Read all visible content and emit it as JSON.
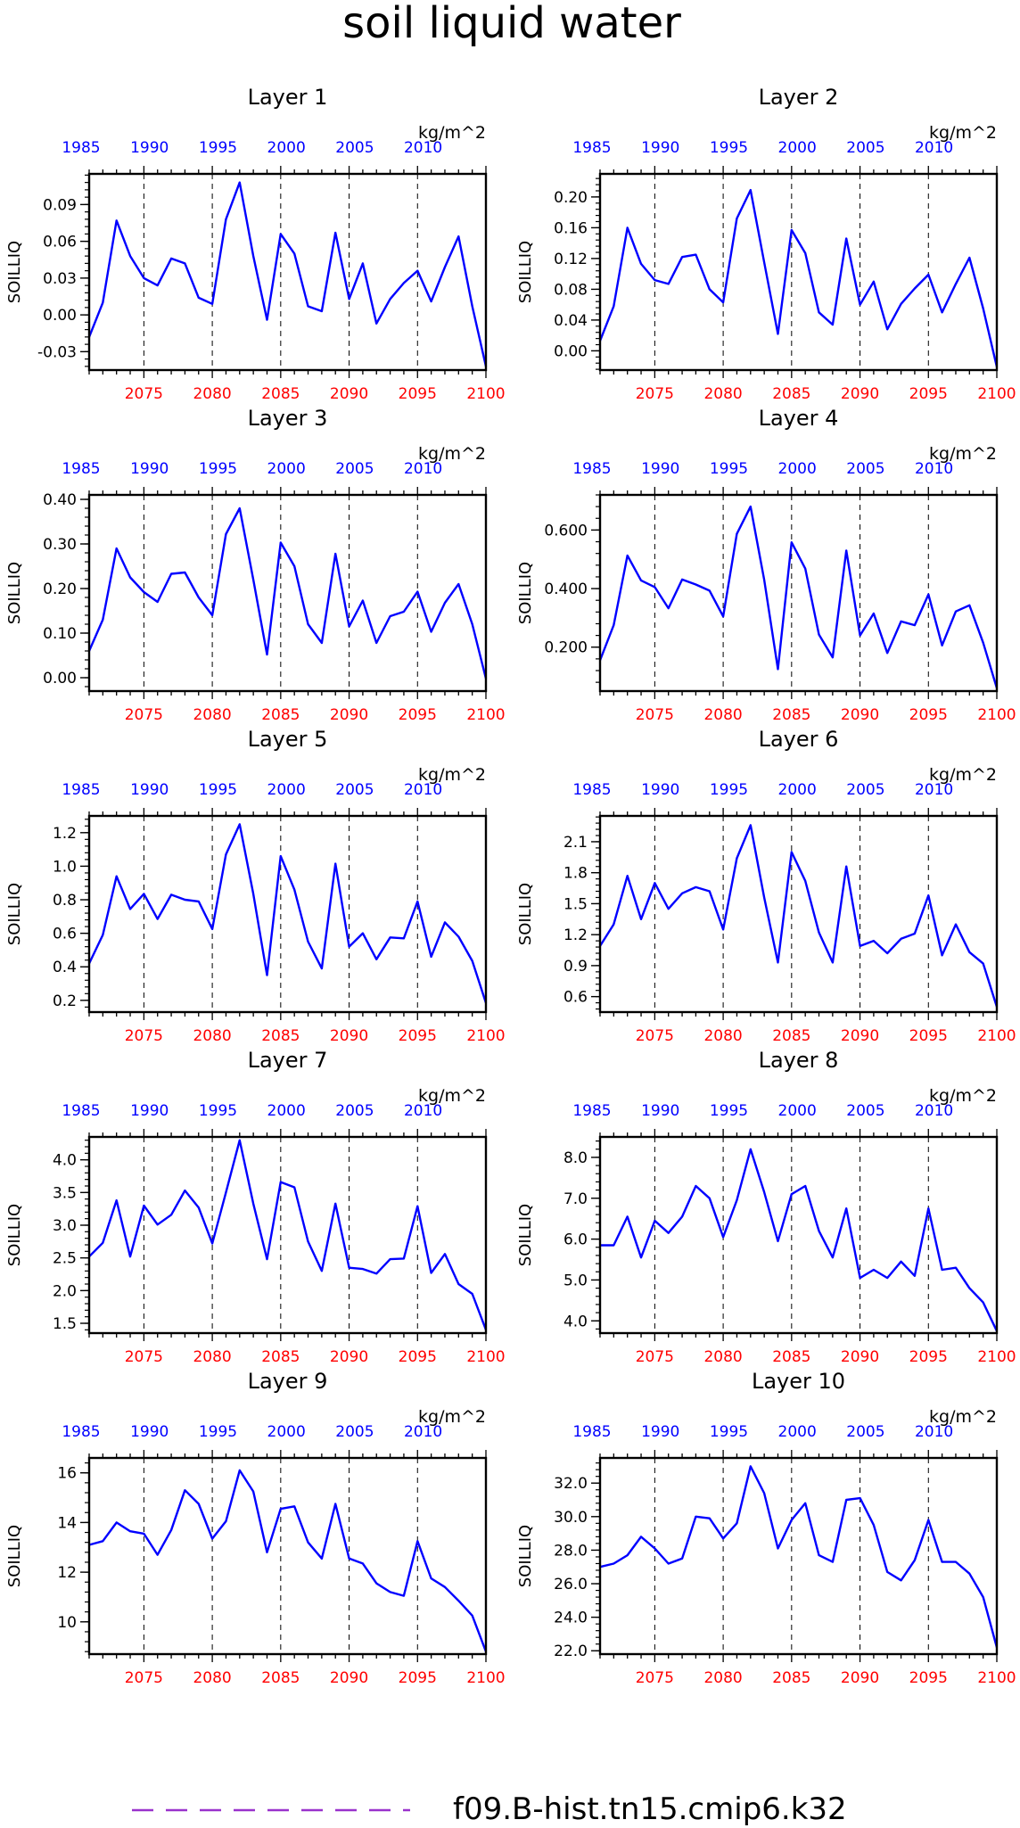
{
  "title": "soil liquid water",
  "legend": {
    "label": "f09.B-hist.tn15.cmip6.k32",
    "line_color": "#9932CC",
    "line_style": "dashed"
  },
  "colors": {
    "series": "#0000FF",
    "bottom_axis_ticks": "#FF0000",
    "top_axis_ticks": "#0000FF",
    "frame": "#000000"
  },
  "shared": {
    "ylabel": "SOILLIQ",
    "units": "kg/m^2",
    "bottom_xlim": [
      2071,
      2100
    ],
    "bottom_ticks": [
      "2075",
      "2080",
      "2085",
      "2090",
      "2095",
      "2100"
    ],
    "top_ticks": [
      "1985",
      "1990",
      "1995",
      "2000",
      "2005",
      "2010"
    ],
    "dashed_vlines_at": [
      2075,
      2080,
      2085,
      2090,
      2095
    ]
  },
  "chart_data": [
    {
      "type": "line",
      "title": "Layer 1",
      "ylabel": "SOILLIQ",
      "units": "kg/m^2",
      "ylim": [
        -0.045,
        0.115
      ],
      "yticks": [
        -0.03,
        0.0,
        0.03,
        0.06,
        0.09
      ],
      "ytick_labels": [
        "-0.03",
        "0.00",
        "0.03",
        "0.06",
        "0.09"
      ],
      "x": [
        2071,
        2072,
        2073,
        2074,
        2075,
        2076,
        2077,
        2078,
        2079,
        2080,
        2081,
        2082,
        2083,
        2084,
        2085,
        2086,
        2087,
        2088,
        2089,
        2090,
        2091,
        2092,
        2093,
        2094,
        2095,
        2096,
        2097,
        2098,
        2099,
        2100
      ],
      "values": [
        -0.018,
        0.01,
        0.077,
        0.048,
        0.03,
        0.024,
        0.046,
        0.042,
        0.014,
        0.009,
        0.078,
        0.108,
        0.048,
        -0.004,
        0.066,
        0.05,
        0.007,
        0.003,
        0.067,
        0.013,
        0.042,
        -0.007,
        0.013,
        0.026,
        0.036,
        0.011,
        0.039,
        0.064,
        0.007,
        -0.042
      ]
    },
    {
      "type": "line",
      "title": "Layer 2",
      "ylabel": "SOILLIQ",
      "units": "kg/m^2",
      "ylim": [
        -0.025,
        0.23
      ],
      "yticks": [
        0.0,
        0.04,
        0.08,
        0.12,
        0.16,
        0.2
      ],
      "ytick_labels": [
        "0.00",
        "0.04",
        "0.08",
        "0.12",
        "0.16",
        "0.20"
      ],
      "x": [
        2071,
        2072,
        2073,
        2074,
        2075,
        2076,
        2077,
        2078,
        2079,
        2080,
        2081,
        2082,
        2083,
        2084,
        2085,
        2086,
        2087,
        2088,
        2089,
        2090,
        2091,
        2092,
        2093,
        2094,
        2095,
        2096,
        2097,
        2098,
        2099,
        2100
      ],
      "values": [
        0.013,
        0.058,
        0.16,
        0.113,
        0.092,
        0.087,
        0.122,
        0.125,
        0.08,
        0.063,
        0.172,
        0.209,
        0.115,
        0.022,
        0.157,
        0.127,
        0.05,
        0.034,
        0.146,
        0.06,
        0.09,
        0.028,
        0.061,
        0.081,
        0.099,
        0.05,
        0.087,
        0.121,
        0.055,
        -0.021
      ]
    },
    {
      "type": "line",
      "title": "Layer 3",
      "ylabel": "SOILLIQ",
      "units": "kg/m^2",
      "ylim": [
        -0.03,
        0.41
      ],
      "yticks": [
        0.0,
        0.1,
        0.2,
        0.3,
        0.4
      ],
      "ytick_labels": [
        "0.00",
        "0.10",
        "0.20",
        "0.30",
        "0.40"
      ],
      "x": [
        2071,
        2072,
        2073,
        2074,
        2075,
        2076,
        2077,
        2078,
        2079,
        2080,
        2081,
        2082,
        2083,
        2084,
        2085,
        2086,
        2087,
        2088,
        2089,
        2090,
        2091,
        2092,
        2093,
        2094,
        2095,
        2096,
        2097,
        2098,
        2099,
        2100
      ],
      "values": [
        0.06,
        0.13,
        0.29,
        0.225,
        0.192,
        0.17,
        0.233,
        0.236,
        0.18,
        0.14,
        0.322,
        0.38,
        0.22,
        0.052,
        0.303,
        0.25,
        0.12,
        0.078,
        0.278,
        0.115,
        0.173,
        0.078,
        0.138,
        0.148,
        0.193,
        0.103,
        0.168,
        0.21,
        0.12,
        -0.002
      ]
    },
    {
      "type": "line",
      "title": "Layer 4",
      "ylabel": "SOILLIQ",
      "units": "kg/m^2",
      "ylim": [
        0.05,
        0.72
      ],
      "yticks": [
        0.2,
        0.4,
        0.6
      ],
      "ytick_labels": [
        "0.200",
        "0.400",
        "0.600"
      ],
      "x": [
        2071,
        2072,
        2073,
        2074,
        2075,
        2076,
        2077,
        2078,
        2079,
        2080,
        2081,
        2082,
        2083,
        2084,
        2085,
        2086,
        2087,
        2088,
        2089,
        2090,
        2091,
        2092,
        2093,
        2094,
        2095,
        2096,
        2097,
        2098,
        2099,
        2100
      ],
      "values": [
        0.155,
        0.275,
        0.513,
        0.428,
        0.405,
        0.333,
        0.431,
        0.414,
        0.393,
        0.305,
        0.587,
        0.68,
        0.43,
        0.125,
        0.558,
        0.468,
        0.243,
        0.165,
        0.53,
        0.24,
        0.315,
        0.18,
        0.288,
        0.275,
        0.38,
        0.206,
        0.322,
        0.343,
        0.215,
        0.06
      ]
    },
    {
      "type": "line",
      "title": "Layer 5",
      "ylabel": "SOILLIQ",
      "units": "kg/m^2",
      "ylim": [
        0.13,
        1.3
      ],
      "yticks": [
        0.2,
        0.4,
        0.6,
        0.8,
        1.0,
        1.2
      ],
      "ytick_labels": [
        "0.2",
        "0.4",
        "0.6",
        "0.8",
        "1.0",
        "1.2"
      ],
      "x": [
        2071,
        2072,
        2073,
        2074,
        2075,
        2076,
        2077,
        2078,
        2079,
        2080,
        2081,
        2082,
        2083,
        2084,
        2085,
        2086,
        2087,
        2088,
        2089,
        2090,
        2091,
        2092,
        2093,
        2094,
        2095,
        2096,
        2097,
        2098,
        2099,
        2100
      ],
      "values": [
        0.42,
        0.59,
        0.94,
        0.745,
        0.835,
        0.685,
        0.83,
        0.8,
        0.79,
        0.625,
        1.07,
        1.25,
        0.835,
        0.35,
        1.06,
        0.86,
        0.55,
        0.39,
        1.015,
        0.52,
        0.6,
        0.445,
        0.575,
        0.57,
        0.79,
        0.46,
        0.665,
        0.58,
        0.435,
        0.185
      ]
    },
    {
      "type": "line",
      "title": "Layer 6",
      "ylabel": "SOILLIQ",
      "units": "kg/m^2",
      "ylim": [
        0.45,
        2.35
      ],
      "yticks": [
        0.6,
        0.9,
        1.2,
        1.5,
        1.8,
        2.1
      ],
      "ytick_labels": [
        "0.6",
        "0.9",
        "1.2",
        "1.5",
        "1.8",
        "2.1"
      ],
      "x": [
        2071,
        2072,
        2073,
        2074,
        2075,
        2076,
        2077,
        2078,
        2079,
        2080,
        2081,
        2082,
        2083,
        2084,
        2085,
        2086,
        2087,
        2088,
        2089,
        2090,
        2091,
        2092,
        2093,
        2094,
        2095,
        2096,
        2097,
        2098,
        2099,
        2100
      ],
      "values": [
        1.09,
        1.3,
        1.77,
        1.35,
        1.7,
        1.45,
        1.6,
        1.66,
        1.62,
        1.25,
        1.94,
        2.26,
        1.56,
        0.93,
        2.0,
        1.72,
        1.22,
        0.93,
        1.86,
        1.09,
        1.14,
        1.02,
        1.16,
        1.21,
        1.58,
        1.0,
        1.3,
        1.03,
        0.92,
        0.5
      ]
    },
    {
      "type": "line",
      "title": "Layer 7",
      "ylabel": "SOILLIQ",
      "units": "kg/m^2",
      "ylim": [
        1.35,
        4.35
      ],
      "yticks": [
        1.5,
        2.0,
        2.5,
        3.0,
        3.5,
        4.0
      ],
      "ytick_labels": [
        "1.5",
        "2.0",
        "2.5",
        "3.0",
        "3.5",
        "4.0"
      ],
      "x": [
        2071,
        2072,
        2073,
        2074,
        2075,
        2076,
        2077,
        2078,
        2079,
        2080,
        2081,
        2082,
        2083,
        2084,
        2085,
        2086,
        2087,
        2088,
        2089,
        2090,
        2091,
        2092,
        2093,
        2094,
        2095,
        2096,
        2097,
        2098,
        2099,
        2100
      ],
      "values": [
        2.52,
        2.73,
        3.38,
        2.52,
        3.3,
        3.01,
        3.16,
        3.53,
        3.27,
        2.72,
        3.5,
        4.3,
        3.33,
        2.48,
        3.66,
        3.58,
        2.75,
        2.3,
        3.33,
        2.35,
        2.33,
        2.26,
        2.48,
        2.49,
        3.29,
        2.27,
        2.56,
        2.1,
        1.95,
        1.4
      ]
    },
    {
      "type": "line",
      "title": "Layer 8",
      "ylabel": "SOILLIQ",
      "units": "kg/m^2",
      "ylim": [
        3.7,
        8.5
      ],
      "yticks": [
        4.0,
        5.0,
        6.0,
        7.0,
        8.0
      ],
      "ytick_labels": [
        "4.0",
        "5.0",
        "6.0",
        "7.0",
        "8.0"
      ],
      "x": [
        2071,
        2072,
        2073,
        2074,
        2075,
        2076,
        2077,
        2078,
        2079,
        2080,
        2081,
        2082,
        2083,
        2084,
        2085,
        2086,
        2087,
        2088,
        2089,
        2090,
        2091,
        2092,
        2093,
        2094,
        2095,
        2096,
        2097,
        2098,
        2099,
        2100
      ],
      "values": [
        5.85,
        5.85,
        6.55,
        5.55,
        6.45,
        6.15,
        6.55,
        7.3,
        7.0,
        6.05,
        6.95,
        8.2,
        7.15,
        5.95,
        7.1,
        7.3,
        6.2,
        5.55,
        6.75,
        5.05,
        5.25,
        5.05,
        5.45,
        5.1,
        6.75,
        5.25,
        5.3,
        4.8,
        4.45,
        3.75
      ]
    },
    {
      "type": "line",
      "title": "Layer 9",
      "ylabel": "SOILLIQ",
      "units": "kg/m^2",
      "ylim": [
        8.7,
        16.6
      ],
      "yticks": [
        10,
        12,
        14,
        16
      ],
      "ytick_labels": [
        "10",
        "12",
        "14",
        "16"
      ],
      "x": [
        2071,
        2072,
        2073,
        2074,
        2075,
        2076,
        2077,
        2078,
        2079,
        2080,
        2081,
        2082,
        2083,
        2084,
        2085,
        2086,
        2087,
        2088,
        2089,
        2090,
        2091,
        2092,
        2093,
        2094,
        2095,
        2096,
        2097,
        2098,
        2099,
        2100
      ],
      "values": [
        13.1,
        13.25,
        14.0,
        13.65,
        13.55,
        12.7,
        13.7,
        15.3,
        14.75,
        13.35,
        14.05,
        16.1,
        15.25,
        12.8,
        14.55,
        14.65,
        13.2,
        12.55,
        14.75,
        12.55,
        12.35,
        11.55,
        11.2,
        11.05,
        13.25,
        11.75,
        11.4,
        10.85,
        10.25,
        8.8
      ]
    },
    {
      "type": "line",
      "title": "Layer 10",
      "ylabel": "SOILLIQ",
      "units": "kg/m^2",
      "ylim": [
        21.8,
        33.5
      ],
      "yticks": [
        22.0,
        24.0,
        26.0,
        28.0,
        30.0,
        32.0
      ],
      "ytick_labels": [
        "22.0",
        "24.0",
        "26.0",
        "28.0",
        "30.0",
        "32.0"
      ],
      "x": [
        2071,
        2072,
        2073,
        2074,
        2075,
        2076,
        2077,
        2078,
        2079,
        2080,
        2081,
        2082,
        2083,
        2084,
        2085,
        2086,
        2087,
        2088,
        2089,
        2090,
        2091,
        2092,
        2093,
        2094,
        2095,
        2096,
        2097,
        2098,
        2099,
        2100
      ],
      "values": [
        27.0,
        27.2,
        27.7,
        28.8,
        28.1,
        27.2,
        27.5,
        30.0,
        29.9,
        28.7,
        29.6,
        33.0,
        31.4,
        28.1,
        29.8,
        30.8,
        27.7,
        27.3,
        31.0,
        31.1,
        29.5,
        26.7,
        26.2,
        27.4,
        29.8,
        27.3,
        27.3,
        26.6,
        25.2,
        22.2
      ]
    }
  ]
}
